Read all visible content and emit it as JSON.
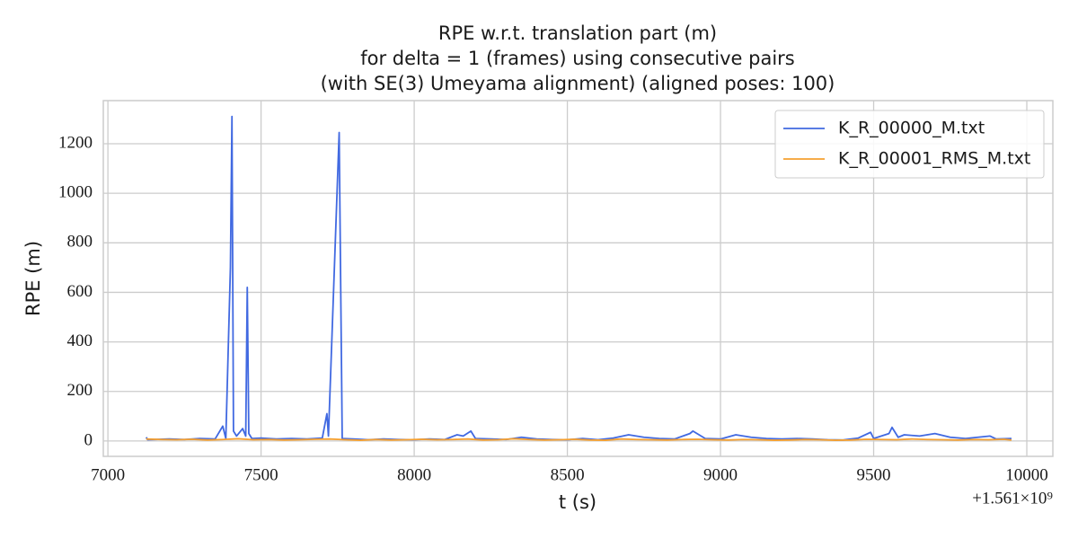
{
  "chart_data": {
    "type": "line",
    "title": [
      "RPE w.r.t. translation part (m)",
      "for delta = 1 (frames) using consecutive pairs",
      "(with SE(3) Umeyama alignment) (aligned poses: 100)"
    ],
    "x_label": "t (s)",
    "y_label": "RPE (m)",
    "x_offset_label": "+1.561×10⁹",
    "xlim": [
      6985,
      10085
    ],
    "ylim": [
      -62,
      1374
    ],
    "xticks": [
      7000,
      7500,
      8000,
      8500,
      9000,
      9500,
      10000
    ],
    "yticks": [
      0,
      200,
      400,
      600,
      800,
      1000,
      1200
    ],
    "grid": true,
    "legend": "upper right",
    "series": [
      {
        "name": "K_R_00000_M.txt",
        "color": "#4169e1",
        "x": [
          7125,
          7130,
          7200,
          7250,
          7300,
          7350,
          7375,
          7385,
          7400,
          7405,
          7410,
          7420,
          7440,
          7450,
          7455,
          7460,
          7470,
          7500,
          7550,
          7600,
          7650,
          7700,
          7715,
          7720,
          7755,
          7765,
          7800,
          7850,
          7900,
          7950,
          8000,
          8050,
          8100,
          8140,
          8160,
          8185,
          8200,
          8250,
          8300,
          8350,
          8400,
          8450,
          8500,
          8550,
          8600,
          8650,
          8700,
          8750,
          8800,
          8850,
          8900,
          8910,
          8950,
          9000,
          9050,
          9100,
          9150,
          9200,
          9250,
          9300,
          9350,
          9400,
          9450,
          9490,
          9500,
          9550,
          9560,
          9580,
          9600,
          9650,
          9700,
          9750,
          9800,
          9880,
          9900,
          9950
        ],
        "values": [
          15,
          5,
          8,
          6,
          10,
          8,
          60,
          10,
          700,
          1310,
          40,
          20,
          50,
          20,
          620,
          30,
          10,
          12,
          8,
          10,
          8,
          12,
          110,
          20,
          1245,
          10,
          8,
          5,
          8,
          6,
          5,
          8,
          6,
          25,
          20,
          40,
          10,
          8,
          6,
          15,
          8,
          6,
          5,
          10,
          5,
          12,
          25,
          15,
          10,
          8,
          30,
          40,
          10,
          8,
          25,
          15,
          10,
          8,
          10,
          8,
          5,
          4,
          12,
          35,
          10,
          30,
          55,
          15,
          25,
          20,
          30,
          15,
          10,
          20,
          8,
          10
        ]
      },
      {
        "name": "K_R_00001_RMS_M.txt",
        "color": "#f5a030",
        "x": [
          7125,
          7175,
          7225,
          7275,
          7325,
          7375,
          7425,
          7475,
          7525,
          7575,
          7625,
          7675,
          7725,
          7775,
          7825,
          7875,
          7925,
          7975,
          8025,
          8075,
          8125,
          8175,
          8225,
          8275,
          8325,
          8375,
          8425,
          8475,
          8525,
          8575,
          8625,
          8675,
          8725,
          8775,
          8825,
          8875,
          8925,
          8975,
          9025,
          9075,
          9125,
          9175,
          9225,
          9275,
          9325,
          9375,
          9425,
          9475,
          9525,
          9575,
          9625,
          9675,
          9725,
          9775,
          9825,
          9875,
          9925,
          9950
        ],
        "values": [
          8,
          6,
          5,
          7,
          4,
          6,
          9,
          5,
          6,
          4,
          5,
          7,
          8,
          5,
          3,
          6,
          4,
          5,
          7,
          5,
          6,
          8,
          4,
          5,
          9,
          6,
          4,
          5,
          7,
          4,
          3,
          8,
          6,
          5,
          4,
          6,
          7,
          5,
          4,
          6,
          5,
          3,
          4,
          6,
          5,
          3,
          4,
          7,
          6,
          5,
          8,
          6,
          5,
          4,
          6,
          5,
          7,
          4
        ]
      }
    ]
  }
}
